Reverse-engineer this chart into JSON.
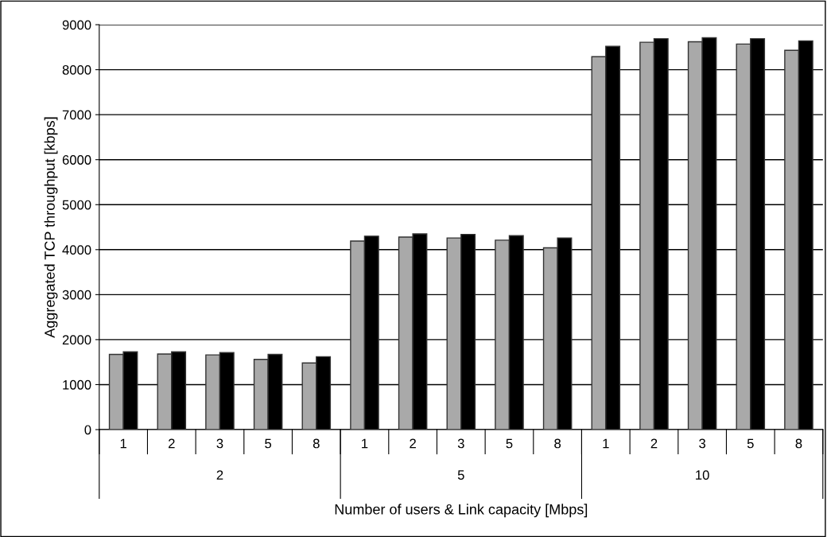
{
  "chart_data": {
    "type": "bar",
    "xlabel": "Number of users & Link capacity [Mbps]",
    "ylabel": "Aggregated TCP throughput [kbps]",
    "categories": [
      "1",
      "2",
      "3",
      "5",
      "8",
      "1",
      "2",
      "3",
      "5",
      "8",
      "1",
      "2",
      "3",
      "5",
      "8"
    ],
    "annotations": [
      "2",
      "5",
      "10"
    ],
    "series": [
      {
        "color": "#a9a9a9",
        "values": [
          1670,
          1680,
          1660,
          1560,
          1480,
          4190,
          4280,
          4260,
          4210,
          4040,
          8290,
          8610,
          8620,
          8570,
          8430
        ]
      },
      {
        "color": "#000000",
        "values": [
          1730,
          1730,
          1710,
          1670,
          1620,
          4300,
          4350,
          4340,
          4310,
          4260,
          8520,
          8690,
          8710,
          8690,
          8640
        ]
      }
    ],
    "ylim": [
      0,
      9000
    ],
    "yticks": [
      0,
      1000,
      2000,
      3000,
      4000,
      5000,
      6000,
      7000,
      8000,
      9000
    ],
    "grid": "y"
  }
}
